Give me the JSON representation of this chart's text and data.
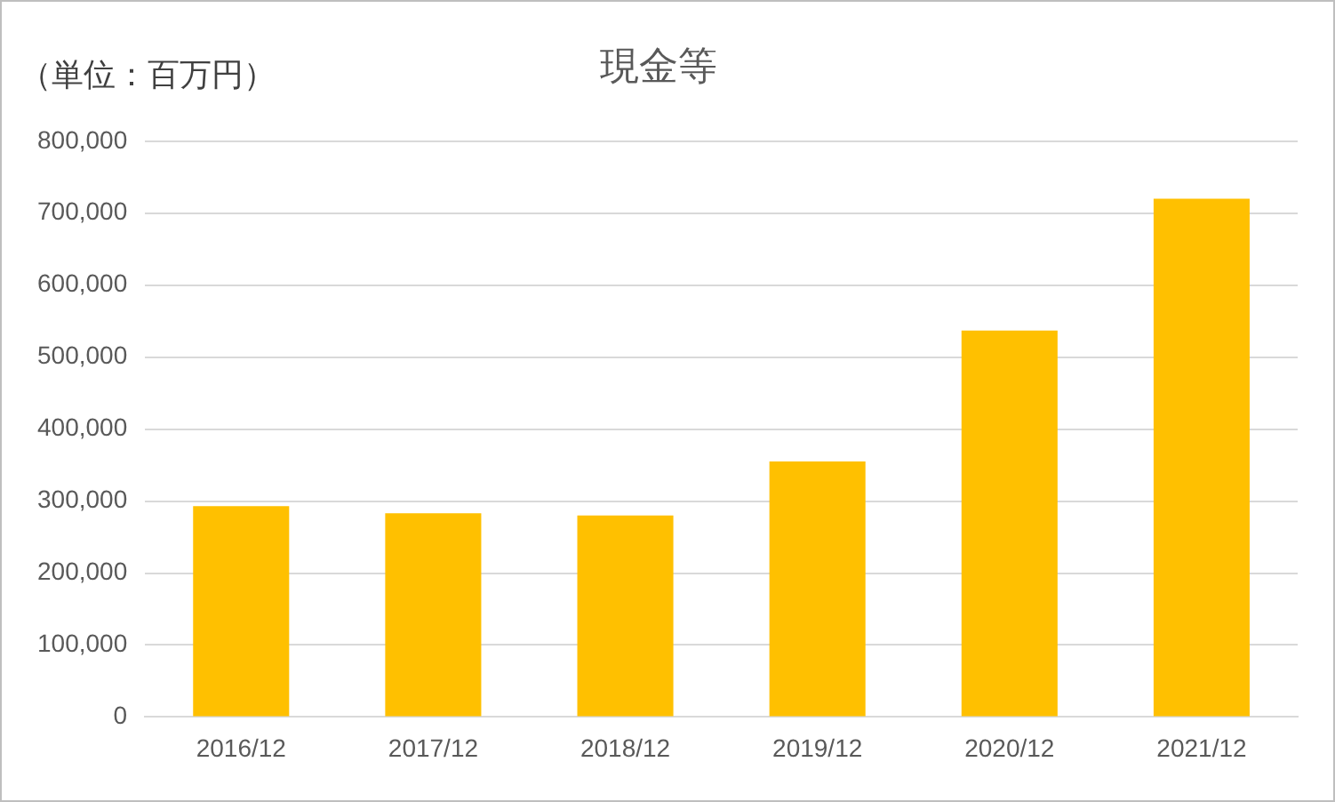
{
  "chart_data": {
    "type": "bar",
    "title": "現金等",
    "annotations": [
      "（単位：百万円）"
    ],
    "categories": [
      "2016/12",
      "2017/12",
      "2018/12",
      "2019/12",
      "2020/12",
      "2021/12"
    ],
    "values": [
      293000,
      283000,
      280000,
      355000,
      537000,
      720000
    ],
    "color": "#ffc000",
    "ylim": [
      0,
      800000
    ],
    "yticks": [
      0,
      {
        "value": 100000,
        "label": "100,000"
      },
      {
        "value": 200000,
        "label": "200,000"
      },
      {
        "value": 300000,
        "label": "300,000"
      },
      {
        "value": 400000,
        "label": "400,000"
      },
      {
        "value": 500000,
        "label": "500,000"
      },
      {
        "value": 600000,
        "label": "600,000"
      },
      {
        "value": 700000,
        "label": "700,000"
      },
      {
        "value": 800000,
        "label": "800,000"
      }
    ],
    "grid": "y"
  }
}
